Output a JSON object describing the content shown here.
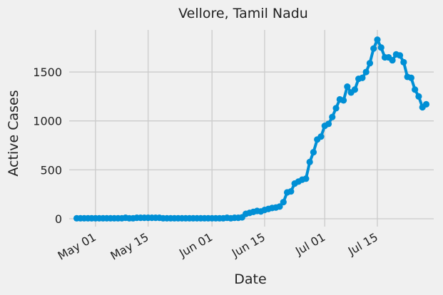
{
  "chart_data": {
    "type": "line",
    "title": "Vellore, Tamil Nadu",
    "xlabel": "Date",
    "ylabel": "Active Cases",
    "ylim": [
      -80,
      1930
    ],
    "xlim": [
      "2020-04-24",
      "2020-07-30"
    ],
    "yticks": [
      0,
      500,
      1000,
      1500
    ],
    "ytick_labels": [
      "0",
      "500",
      "1000",
      "1500"
    ],
    "xticks": [
      "2020-05-01",
      "2020-05-15",
      "2020-06-01",
      "2020-06-15",
      "2020-07-01",
      "2020-07-15"
    ],
    "xtick_labels": [
      "May 01",
      "May 15",
      "Jun 01",
      "Jun 15",
      "Jul 01",
      "Jul 15"
    ],
    "grid": true,
    "series": [
      {
        "color": "#008fd5",
        "points": [
          [
            "2020-04-26",
            5
          ],
          [
            "2020-04-27",
            5
          ],
          [
            "2020-04-28",
            5
          ],
          [
            "2020-04-29",
            5
          ],
          [
            "2020-04-30",
            5
          ],
          [
            "2020-05-01",
            5
          ],
          [
            "2020-05-02",
            5
          ],
          [
            "2020-05-03",
            5
          ],
          [
            "2020-05-04",
            5
          ],
          [
            "2020-05-05",
            5
          ],
          [
            "2020-05-06",
            5
          ],
          [
            "2020-05-07",
            5
          ],
          [
            "2020-05-08",
            5
          ],
          [
            "2020-05-09",
            10
          ],
          [
            "2020-05-10",
            5
          ],
          [
            "2020-05-11",
            5
          ],
          [
            "2020-05-12",
            10
          ],
          [
            "2020-05-13",
            10
          ],
          [
            "2020-05-14",
            10
          ],
          [
            "2020-05-15",
            10
          ],
          [
            "2020-05-16",
            10
          ],
          [
            "2020-05-17",
            10
          ],
          [
            "2020-05-18",
            10
          ],
          [
            "2020-05-19",
            5
          ],
          [
            "2020-05-20",
            5
          ],
          [
            "2020-05-21",
            5
          ],
          [
            "2020-05-22",
            5
          ],
          [
            "2020-05-23",
            5
          ],
          [
            "2020-05-24",
            5
          ],
          [
            "2020-05-25",
            5
          ],
          [
            "2020-05-26",
            5
          ],
          [
            "2020-05-27",
            5
          ],
          [
            "2020-05-28",
            5
          ],
          [
            "2020-05-29",
            5
          ],
          [
            "2020-05-30",
            5
          ],
          [
            "2020-05-31",
            5
          ],
          [
            "2020-06-01",
            5
          ],
          [
            "2020-06-02",
            5
          ],
          [
            "2020-06-03",
            5
          ],
          [
            "2020-06-04",
            5
          ],
          [
            "2020-06-05",
            10
          ],
          [
            "2020-06-06",
            5
          ],
          [
            "2020-06-07",
            10
          ],
          [
            "2020-06-08",
            10
          ],
          [
            "2020-06-09",
            15
          ],
          [
            "2020-06-10",
            50
          ],
          [
            "2020-06-11",
            60
          ],
          [
            "2020-06-12",
            70
          ],
          [
            "2020-06-13",
            80
          ],
          [
            "2020-06-14",
            75
          ],
          [
            "2020-06-15",
            90
          ],
          [
            "2020-06-16",
            100
          ],
          [
            "2020-06-17",
            110
          ],
          [
            "2020-06-18",
            115
          ],
          [
            "2020-06-19",
            125
          ],
          [
            "2020-06-20",
            170
          ],
          [
            "2020-06-21",
            270
          ],
          [
            "2020-06-22",
            280
          ],
          [
            "2020-06-23",
            360
          ],
          [
            "2020-06-24",
            380
          ],
          [
            "2020-06-25",
            400
          ],
          [
            "2020-06-26",
            410
          ],
          [
            "2020-06-27",
            580
          ],
          [
            "2020-06-28",
            680
          ],
          [
            "2020-06-29",
            810
          ],
          [
            "2020-06-30",
            840
          ],
          [
            "2020-07-01",
            950
          ],
          [
            "2020-07-02",
            970
          ],
          [
            "2020-07-03",
            1040
          ],
          [
            "2020-07-04",
            1130
          ],
          [
            "2020-07-05",
            1220
          ],
          [
            "2020-07-06",
            1210
          ],
          [
            "2020-07-07",
            1350
          ],
          [
            "2020-07-08",
            1290
          ],
          [
            "2020-07-09",
            1320
          ],
          [
            "2020-07-10",
            1430
          ],
          [
            "2020-07-11",
            1440
          ],
          [
            "2020-07-12",
            1500
          ],
          [
            "2020-07-13",
            1590
          ],
          [
            "2020-07-14",
            1740
          ],
          [
            "2020-07-15",
            1830
          ],
          [
            "2020-07-16",
            1750
          ],
          [
            "2020-07-17",
            1650
          ],
          [
            "2020-07-18",
            1650
          ],
          [
            "2020-07-19",
            1620
          ],
          [
            "2020-07-20",
            1680
          ],
          [
            "2020-07-21",
            1670
          ],
          [
            "2020-07-22",
            1600
          ],
          [
            "2020-07-23",
            1450
          ],
          [
            "2020-07-24",
            1440
          ],
          [
            "2020-07-25",
            1320
          ],
          [
            "2020-07-26",
            1250
          ],
          [
            "2020-07-27",
            1140
          ],
          [
            "2020-07-28",
            1170
          ]
        ]
      }
    ]
  }
}
